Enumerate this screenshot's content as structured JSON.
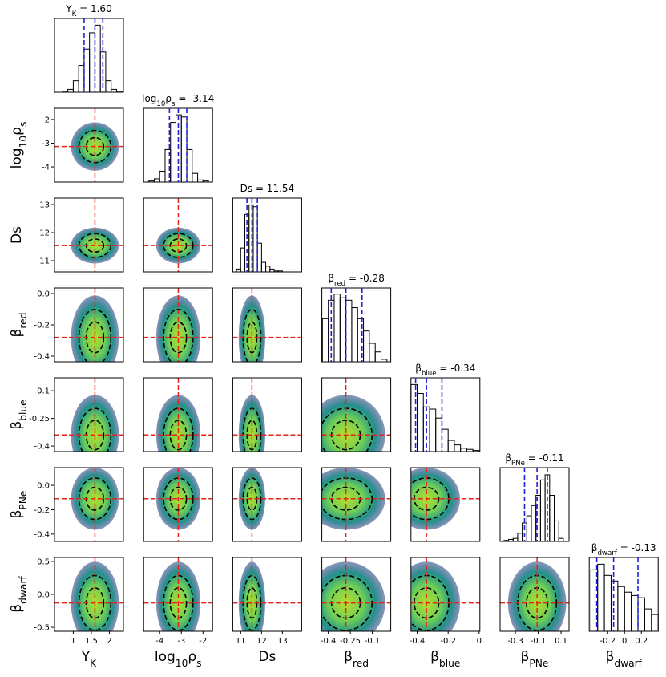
{
  "chart_data": {
    "type": "corner",
    "params": [
      {
        "label": [
          "Y",
          "K"
        ],
        "title_value": " = 1.60",
        "median": 1.6,
        "quantiles": [
          1.3,
          1.6,
          1.82
        ],
        "xlim": [
          0.48,
          2.39
        ],
        "xticks": [
          1,
          1.5,
          2
        ],
        "bins": [
          0.7,
          0.85,
          1.0,
          1.15,
          1.3,
          1.45,
          1.6,
          1.75,
          1.9,
          2.05,
          2.2,
          2.35
        ],
        "counts": [
          1,
          3,
          12,
          28,
          45,
          62,
          70,
          42,
          12,
          3,
          1
        ],
        "hist_ylim": [
          0,
          77
        ]
      },
      {
        "label": [
          "log",
          "10",
          "ρ",
          "s"
        ],
        "title_value": " = -3.14",
        "median": -3.14,
        "quantiles": [
          -3.55,
          -3.14,
          -2.75
        ],
        "xlim": [
          -4.74,
          -1.56
        ],
        "xticks": [
          -4,
          -3,
          -2
        ],
        "ylim": [
          -4.64,
          -1.53
        ],
        "yticks": [
          -2,
          -3,
          -4
        ],
        "bins": [
          -4.5,
          -4.25,
          -4.0,
          -3.75,
          -3.5,
          -3.25,
          -3.0,
          -2.75,
          -2.5,
          -2.25,
          -2.0,
          -1.75
        ],
        "counts": [
          1,
          3,
          10,
          30,
          55,
          62,
          60,
          30,
          8,
          2,
          1
        ],
        "hist_ylim": [
          0,
          68
        ]
      },
      {
        "label": [
          "Ds"
        ],
        "title_value": " = 11.54",
        "median": 11.54,
        "quantiles": [
          11.3,
          11.54,
          11.8
        ],
        "xlim": [
          10.62,
          13.92
        ],
        "xticks": [
          11,
          12,
          13
        ],
        "ylim": [
          10.6,
          13.23
        ],
        "yticks": [
          11,
          12,
          13
        ],
        "bins": [
          10.8,
          11.0,
          11.2,
          11.4,
          11.6,
          11.8,
          12.0,
          12.2,
          12.4,
          12.6,
          12.8,
          13.0
        ],
        "counts": [
          3,
          25,
          60,
          70,
          68,
          30,
          10,
          6,
          3,
          1,
          1
        ],
        "hist_ylim": [
          0,
          77
        ]
      },
      {
        "label": [
          "β",
          "red"
        ],
        "title_value": " = -0.28",
        "median": -0.28,
        "quantiles": [
          -0.38,
          -0.28,
          -0.17
        ],
        "xlim": [
          -0.444,
          0.026
        ],
        "xticks": [
          -0.4,
          -0.25,
          -0.1
        ],
        "ylim": [
          -0.436,
          0.036
        ],
        "yticks": [
          {
            "value": 0,
            "label": "0.0"
          },
          -0.2,
          -0.4
        ],
        "bins": [
          -0.44,
          -0.4,
          -0.36,
          -0.32,
          -0.28,
          -0.24,
          -0.2,
          -0.16,
          -0.12,
          -0.08,
          -0.04,
          0.0
        ],
        "counts": [
          35,
          50,
          55,
          52,
          50,
          44,
          35,
          25,
          15,
          8,
          2
        ],
        "hist_ylim": [
          0,
          60
        ]
      },
      {
        "label": [
          "β",
          "blue"
        ],
        "title_value": " = -0.34",
        "median": -0.34,
        "quantiles": [
          -0.41,
          -0.34,
          -0.24
        ],
        "xlim": [
          -0.44,
          0.005
        ],
        "xticks": [
          -0.4,
          -0.2,
          0
        ],
        "ylim": [
          -0.43,
          -0.03
        ],
        "yticks": [
          -0.1,
          -0.25,
          -0.4
        ],
        "bins": [
          -0.44,
          -0.4,
          -0.36,
          -0.32,
          -0.28,
          -0.24,
          -0.2,
          -0.16,
          -0.12,
          -0.08,
          -0.04,
          0.0
        ],
        "counts": [
          60,
          52,
          40,
          38,
          30,
          20,
          10,
          6,
          3,
          2,
          1
        ],
        "hist_ylim": [
          0,
          66
        ]
      },
      {
        "label": [
          "β",
          "PNe"
        ],
        "title_value": " = -0.11",
        "median": -0.11,
        "quantiles": [
          -0.22,
          -0.11,
          -0.02
        ],
        "xlim": [
          -0.434,
          0.17
        ],
        "xticks": [
          -0.3,
          -0.1,
          0.1
        ],
        "ylim": [
          -0.46,
          0.145
        ],
        "yticks": [
          {
            "value": 0,
            "label": "0.0"
          },
          -0.2,
          -0.4
        ],
        "bins": [
          -0.4,
          -0.36,
          -0.32,
          -0.28,
          -0.24,
          -0.2,
          -0.16,
          -0.12,
          -0.08,
          -0.04,
          0.0,
          0.04,
          0.08,
          0.12
        ],
        "counts": [
          1,
          2,
          3,
          8,
          18,
          25,
          35,
          45,
          60,
          65,
          45,
          20,
          3
        ],
        "hist_ylim": [
          0,
          72
        ]
      },
      {
        "label": [
          "β",
          "dwarf"
        ],
        "title_value": " = -0.13",
        "median": -0.13,
        "quantiles": [
          -0.33,
          -0.13,
          0.16
        ],
        "xlim": [
          -0.42,
          0.4
        ],
        "xticks": [
          -0.2,
          0,
          0.2
        ],
        "ylim": [
          -0.56,
          0.56
        ],
        "yticks": [
          0.5,
          {
            "value": 0,
            "label": "0.0"
          },
          -0.5
        ],
        "bins": [
          -0.4,
          -0.32,
          -0.24,
          -0.16,
          -0.08,
          0.0,
          0.08,
          0.16,
          0.24,
          0.32,
          0.4
        ],
        "counts": [
          55,
          60,
          50,
          45,
          40,
          35,
          32,
          30,
          20,
          15
        ],
        "hist_ylim": [
          0,
          66
        ]
      }
    ]
  }
}
